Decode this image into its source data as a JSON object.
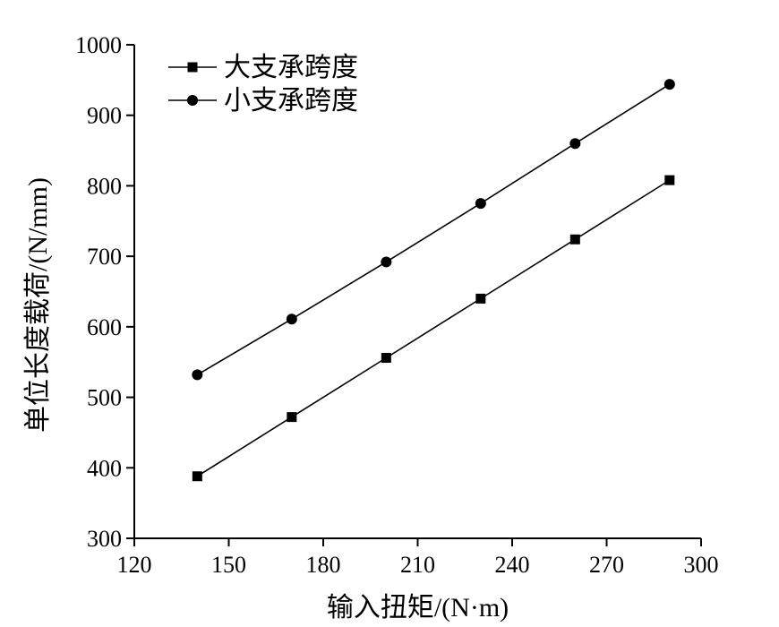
{
  "chart_data": {
    "type": "line",
    "xlabel": "输入扭矩/(N·m)",
    "ylabel": "单位长度载荷/(N/mm)",
    "xlim": [
      120,
      300
    ],
    "ylim": [
      300,
      1000
    ],
    "x_ticks": [
      "120",
      "150",
      "180",
      "210",
      "240",
      "270",
      "300"
    ],
    "y_ticks": [
      "300",
      "400",
      "500",
      "600",
      "700",
      "800",
      "900",
      "1000"
    ],
    "grid": false,
    "legend_position": "top-left",
    "x": [
      140,
      170,
      200,
      230,
      260,
      290
    ],
    "series": [
      {
        "name": "大支承跨度",
        "marker": "square",
        "values": [
          388,
          472,
          556,
          640,
          724,
          808
        ]
      },
      {
        "name": "小支承跨度",
        "marker": "circle",
        "values": [
          532,
          611,
          692,
          775,
          860,
          944
        ]
      }
    ],
    "colors": {
      "line": "#000000",
      "axis": "#000000"
    }
  }
}
